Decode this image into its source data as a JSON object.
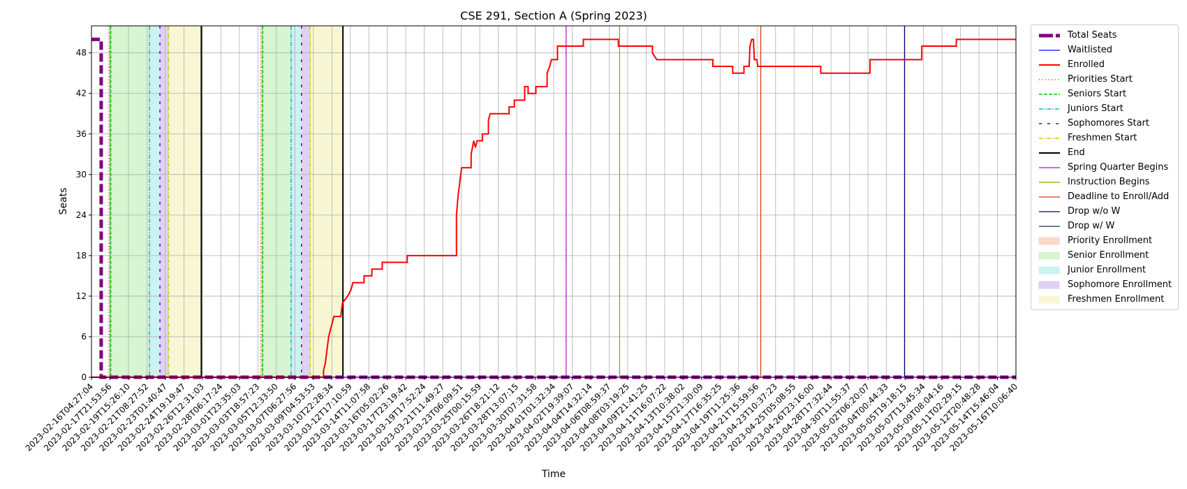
{
  "chart_data": {
    "type": "line",
    "title": "CSE 291, Section A (Spring 2023)",
    "xlabel": "Time",
    "ylabel": "Seats",
    "ylim": [
      0,
      52
    ],
    "yticks": [
      0,
      6,
      12,
      18,
      24,
      30,
      36,
      42,
      48
    ],
    "xlim": [
      "2023-02-16T04:27:04",
      "2023-05-16T10:06:40"
    ],
    "x_tick_labels": [
      "2023-02-16T04:27:04",
      "2023-02-17T21:53:56",
      "2023-02-19T15:26:10",
      "2023-02-21T08:27:52",
      "2023-02-23T01:40:47",
      "2023-02-24T19:19:47",
      "2023-02-26T12:31:03",
      "2023-02-28T06:17:24",
      "2023-03-01T23:35:03",
      "2023-03-03T18:57:23",
      "2023-03-05T12:33:50",
      "2023-03-07T06:27:56",
      "2023-03-09T04:53:53",
      "2023-03-10T22:28:34",
      "2023-03-12T17:10:59",
      "2023-03-14T11:07:58",
      "2023-03-16T05:02:26",
      "2023-03-17T23:19:42",
      "2023-03-19T17:52:24",
      "2023-03-21T11:49:27",
      "2023-03-23T06:09:51",
      "2023-03-25T00:15:59",
      "2023-03-26T18:21:12",
      "2023-03-28T13:07:15",
      "2023-03-30T07:31:58",
      "2023-04-01T01:32:34",
      "2023-04-02T19:39:07",
      "2023-04-04T14:32:14",
      "2023-04-06T08:59:37",
      "2023-04-08T03:19:25",
      "2023-04-09T21:41:25",
      "2023-04-11T16:07:22",
      "2023-04-13T10:38:02",
      "2023-04-15T21:30:09",
      "2023-04-17T16:35:25",
      "2023-04-19T11:25:36",
      "2023-04-21T15:59:56",
      "2023-04-23T10:37:23",
      "2023-04-25T05:08:55",
      "2023-04-26T23:16:00",
      "2023-04-28T17:32:44",
      "2023-04-30T11:55:37",
      "2023-05-02T06:20:07",
      "2023-05-04T00:44:33",
      "2023-05-05T19:18:15",
      "2023-05-07T13:45:34",
      "2023-05-09T08:04:16",
      "2023-05-11T02:29:15",
      "2023-05-12T20:48:28",
      "2023-05-14T15:46:04",
      "2023-05-16T10:06:40"
    ],
    "series": [
      {
        "name": "Total Seats",
        "color": "#800080",
        "style": "dashed-thick",
        "points": [
          [
            "2023-02-16T04:27:04",
            50
          ],
          [
            "2023-02-17T03:00:00",
            50
          ],
          [
            "2023-02-17T03:00:00",
            0
          ],
          [
            "2023-05-16T10:06:40",
            0
          ]
        ]
      },
      {
        "name": "Waitlisted",
        "color": "#0000ff",
        "style": "solid-thin",
        "points": [
          [
            "2023-02-16T04:27:04",
            0
          ],
          [
            "2023-05-16T10:06:40",
            0
          ]
        ]
      },
      {
        "name": "Enrolled",
        "color": "#ff0000",
        "style": "solid",
        "points": [
          [
            "2023-02-16T04:27:04",
            0
          ],
          [
            "2023-03-10T14:00:00",
            0
          ],
          [
            "2023-03-10T14:00:00",
            1
          ],
          [
            "2023-03-10T18:00:00",
            2
          ],
          [
            "2023-03-10T22:00:00",
            4
          ],
          [
            "2023-03-11T02:00:00",
            6
          ],
          [
            "2023-03-11T06:00:00",
            7
          ],
          [
            "2023-03-11T10:00:00",
            8
          ],
          [
            "2023-03-11T14:00:00",
            9
          ],
          [
            "2023-03-12T06:00:00",
            9
          ],
          [
            "2023-03-12T10:00:00",
            11
          ],
          [
            "2023-03-12T22:00:00",
            12
          ],
          [
            "2023-03-13T06:00:00",
            13
          ],
          [
            "2023-03-13T10:00:00",
            14
          ],
          [
            "2023-03-14T12:00:00",
            14
          ],
          [
            "2023-03-14T12:00:00",
            15
          ],
          [
            "2023-03-15T06:00:00",
            15
          ],
          [
            "2023-03-15T06:00:00",
            16
          ],
          [
            "2023-03-16T06:00:00",
            16
          ],
          [
            "2023-03-16T06:00:00",
            17
          ],
          [
            "2023-03-18T16:00:00",
            17
          ],
          [
            "2023-03-18T16:00:00",
            18
          ],
          [
            "2023-03-23T10:00:00",
            18
          ],
          [
            "2023-03-23T10:00:00",
            24
          ],
          [
            "2023-03-23T14:00:00",
            27
          ],
          [
            "2023-03-23T18:00:00",
            29
          ],
          [
            "2023-03-23T22:00:00",
            31
          ],
          [
            "2023-03-24T20:00:00",
            31
          ],
          [
            "2023-03-24T20:00:00",
            33
          ],
          [
            "2023-03-25T02:00:00",
            35
          ],
          [
            "2023-03-25T06:00:00",
            34
          ],
          [
            "2023-03-25T10:00:00",
            35
          ],
          [
            "2023-03-25T22:00:00",
            35
          ],
          [
            "2023-03-25T22:00:00",
            36
          ],
          [
            "2023-03-26T12:00:00",
            36
          ],
          [
            "2023-03-26T12:00:00",
            38
          ],
          [
            "2023-03-26T16:00:00",
            39
          ],
          [
            "2023-03-28T12:00:00",
            39
          ],
          [
            "2023-03-28T12:00:00",
            40
          ],
          [
            "2023-03-29T00:00:00",
            40
          ],
          [
            "2023-03-29T00:00:00",
            41
          ],
          [
            "2023-03-30T00:00:00",
            41
          ],
          [
            "2023-03-30T00:00:00",
            43
          ],
          [
            "2023-03-30T08:00:00",
            43
          ],
          [
            "2023-03-30T08:00:00",
            42
          ],
          [
            "2023-03-31T02:00:00",
            42
          ],
          [
            "2023-03-31T02:00:00",
            43
          ],
          [
            "2023-04-01T04:00:00",
            43
          ],
          [
            "2023-04-01T04:00:00",
            45
          ],
          [
            "2023-04-01T10:00:00",
            46
          ],
          [
            "2023-04-01T14:00:00",
            47
          ],
          [
            "2023-04-02T04:00:00",
            47
          ],
          [
            "2023-04-02T04:00:00",
            49
          ],
          [
            "2023-04-04T16:00:00",
            49
          ],
          [
            "2023-04-04T16:00:00",
            50
          ],
          [
            "2023-04-08T01:00:00",
            50
          ],
          [
            "2023-04-08T01:00:00",
            49
          ],
          [
            "2023-04-11T08:00:00",
            49
          ],
          [
            "2023-04-11T08:00:00",
            48
          ],
          [
            "2023-04-11T18:00:00",
            47
          ],
          [
            "2023-04-17T04:00:00",
            47
          ],
          [
            "2023-04-17T04:00:00",
            46
          ],
          [
            "2023-04-19T02:00:00",
            46
          ],
          [
            "2023-04-19T02:00:00",
            45
          ],
          [
            "2023-04-20T04:00:00",
            45
          ],
          [
            "2023-04-20T04:00:00",
            46
          ],
          [
            "2023-04-20T16:00:00",
            46
          ],
          [
            "2023-04-20T18:00:00",
            49
          ],
          [
            "2023-04-20T22:00:00",
            50
          ],
          [
            "2023-04-21T02:00:00",
            50
          ],
          [
            "2023-04-21T04:00:00",
            47
          ],
          [
            "2023-04-21T10:00:00",
            47
          ],
          [
            "2023-04-21T12:00:00",
            46
          ],
          [
            "2023-04-27T14:00:00",
            46
          ],
          [
            "2023-04-27T14:00:00",
            45
          ],
          [
            "2023-05-02T08:00:00",
            45
          ],
          [
            "2023-05-02T08:00:00",
            47
          ],
          [
            "2023-05-07T08:00:00",
            47
          ],
          [
            "2023-05-07T08:00:00",
            49
          ],
          [
            "2023-05-10T16:00:00",
            49
          ],
          [
            "2023-05-10T16:00:00",
            50
          ],
          [
            "2023-05-16T10:06:40",
            50
          ]
        ]
      }
    ],
    "vlines": [
      {
        "name": "Priorities Start",
        "color": "#ff6347",
        "style": "dotted",
        "x": [
          "2023-02-17T21:00:00",
          "2023-03-04T13:00:00"
        ]
      },
      {
        "name": "Seniors Start",
        "color": "#00c800",
        "style": "dashed",
        "x": [
          "2023-02-18T01:00:00",
          "2023-03-04T17:00:00"
        ]
      },
      {
        "name": "Juniors Start",
        "color": "#00bfbf",
        "style": "dashdot",
        "x": [
          "2023-02-21T19:00:00",
          "2023-03-07T11:00:00"
        ]
      },
      {
        "name": "Sophomores Start",
        "color": "#5500cc",
        "style": "loosedash",
        "x": [
          "2023-02-22T19:00:00",
          "2023-03-08T11:00:00"
        ]
      },
      {
        "name": "Freshmen Start",
        "color": "#d4c800",
        "style": "dashdot",
        "x": [
          "2023-02-23T15:00:00",
          "2023-03-09T07:00:00"
        ]
      },
      {
        "name": "End",
        "color": "#000000",
        "style": "solid",
        "x": [
          "2023-02-26T19:00:00",
          "2023-03-12T11:00:00"
        ]
      },
      {
        "name": "Spring Quarter Begins",
        "color": "#c800c8",
        "style": "solid-thin",
        "x": [
          "2023-04-03T00:00:00"
        ]
      },
      {
        "name": "Instruction Begins",
        "color": "#7fa800",
        "style": "solid-thin",
        "x": [
          "2023-04-08T04:00:00"
        ]
      },
      {
        "name": "Deadline to Enroll/Add",
        "color": "#e03000",
        "style": "solid-thin",
        "x": [
          "2023-04-21T19:00:00"
        ]
      },
      {
        "name": "Drop w/o W",
        "color": "#000080",
        "style": "solid-thin",
        "x": [
          "2023-05-05T16:00:00"
        ]
      },
      {
        "name": "Drop w/ W",
        "color": "#1f2f4f",
        "style": "solid-thin",
        "x": [
          "2023-05-19T19:00:00"
        ]
      }
    ],
    "spans": [
      {
        "name": "Priority Enrollment",
        "color": "#fbd8c8",
        "ranges": [
          [
            "2023-02-17T21:00:00",
            "2023-02-18T01:00:00"
          ],
          [
            "2023-03-04T13:00:00",
            "2023-03-04T17:00:00"
          ]
        ]
      },
      {
        "name": "Senior Enrollment",
        "color": "#d6f5d0",
        "ranges": [
          [
            "2023-02-18T01:00:00",
            "2023-02-21T19:00:00"
          ],
          [
            "2023-03-04T17:00:00",
            "2023-03-07T11:00:00"
          ]
        ]
      },
      {
        "name": "Junior Enrollment",
        "color": "#ccf2f2",
        "ranges": [
          [
            "2023-02-21T19:00:00",
            "2023-02-22T19:00:00"
          ],
          [
            "2023-03-07T11:00:00",
            "2023-03-08T11:00:00"
          ]
        ]
      },
      {
        "name": "Sophomore Enrollment",
        "color": "#dcd2f4",
        "ranges": [
          [
            "2023-02-22T19:00:00",
            "2023-02-23T15:00:00"
          ],
          [
            "2023-03-08T11:00:00",
            "2023-03-09T07:00:00"
          ]
        ]
      },
      {
        "name": "Freshmen Enrollment",
        "color": "#f7f7d4",
        "ranges": [
          [
            "2023-02-23T15:00:00",
            "2023-02-26T19:00:00"
          ],
          [
            "2023-03-09T07:00:00",
            "2023-03-12T11:00:00"
          ]
        ]
      }
    ],
    "legend": {
      "position": "outside-right",
      "entries": [
        {
          "label": "Total Seats",
          "kind": "line",
          "color": "#800080",
          "style": "dashed-thick"
        },
        {
          "label": "Waitlisted",
          "kind": "line",
          "color": "#0000ff",
          "style": "solid-thin"
        },
        {
          "label": "Enrolled",
          "kind": "line",
          "color": "#ff0000",
          "style": "solid"
        },
        {
          "label": "Priorities Start",
          "kind": "line",
          "color": "#ff6347",
          "style": "dotted"
        },
        {
          "label": "Seniors Start",
          "kind": "line",
          "color": "#00c800",
          "style": "dashed"
        },
        {
          "label": "Juniors Start",
          "kind": "line",
          "color": "#00bfbf",
          "style": "dashdot"
        },
        {
          "label": "Sophomores Start",
          "kind": "line",
          "color": "#5500cc",
          "style": "loosedash"
        },
        {
          "label": "Freshmen Start",
          "kind": "line",
          "color": "#d4c800",
          "style": "dashdot"
        },
        {
          "label": "End",
          "kind": "line",
          "color": "#000000",
          "style": "solid"
        },
        {
          "label": "Spring Quarter Begins",
          "kind": "line",
          "color": "#c800c8",
          "style": "solid-thin"
        },
        {
          "label": "Instruction Begins",
          "kind": "line",
          "color": "#7fa800",
          "style": "solid-thin"
        },
        {
          "label": "Deadline to Enroll/Add",
          "kind": "line",
          "color": "#e03000",
          "style": "solid-thin"
        },
        {
          "label": "Drop w/o W",
          "kind": "line",
          "color": "#000080",
          "style": "solid-thin"
        },
        {
          "label": "Drop w/ W",
          "kind": "line",
          "color": "#1f2f4f",
          "style": "solid-thin"
        },
        {
          "label": "Priority Enrollment",
          "kind": "patch",
          "color": "#fbd8c8"
        },
        {
          "label": "Senior Enrollment",
          "kind": "patch",
          "color": "#d6f5d0"
        },
        {
          "label": "Junior Enrollment",
          "kind": "patch",
          "color": "#ccf2f2"
        },
        {
          "label": "Sophomore Enrollment",
          "kind": "patch",
          "color": "#dcd2f4"
        },
        {
          "label": "Freshmen Enrollment",
          "kind": "patch",
          "color": "#f7f7d4"
        }
      ]
    },
    "grid": true
  }
}
